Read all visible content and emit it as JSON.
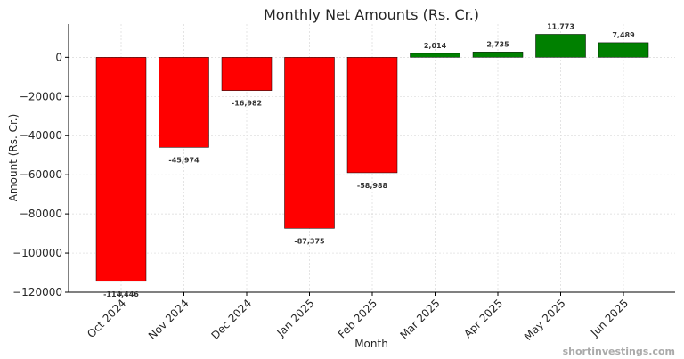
{
  "chart_data": {
    "type": "bar",
    "title": "Monthly Net Amounts (Rs. Cr.)",
    "xlabel": "Month",
    "ylabel": "Amount (Rs. Cr.)",
    "categories": [
      "Oct 2024",
      "Nov 2024",
      "Dec 2024",
      "Jan 2025",
      "Feb 2025",
      "Mar 2025",
      "Apr 2025",
      "May 2025",
      "Jun 2025"
    ],
    "values": [
      -114446,
      -45974,
      -16982,
      -87375,
      -58988,
      2014,
      2735,
      11773,
      7489
    ],
    "data_labels": [
      "-114,446",
      "-45,974",
      "-16,982",
      "-87,375",
      "-58,988",
      "2,014",
      "2,735",
      "11,773",
      "7,489"
    ],
    "ylim": [
      -120000,
      17000
    ],
    "yticks": [
      0,
      -20000,
      -40000,
      -60000,
      -80000,
      -100000,
      -120000
    ],
    "ytick_labels": [
      "0",
      "−20000",
      "−40000",
      "−60000",
      "−80000",
      "−100000",
      "−120000"
    ],
    "grid": true,
    "colors": {
      "negative": "#ff0000",
      "positive": "#008000",
      "bar_edge": "#000000"
    }
  },
  "watermark": "shortinvestings.com"
}
